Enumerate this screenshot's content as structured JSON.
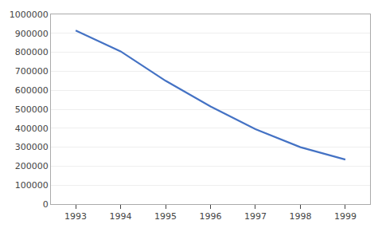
{
  "chart_data": {
    "type": "line",
    "x": [
      1993,
      1994,
      1995,
      1996,
      1997,
      1998,
      1999
    ],
    "values": [
      915000,
      805000,
      650000,
      515000,
      395000,
      300000,
      235000
    ],
    "color": "#4472C4",
    "xlim": [
      1992.45,
      1999.55
    ],
    "xticks": [
      1993,
      1994,
      1995,
      1996,
      1997,
      1998,
      1999
    ],
    "ylim": [
      0,
      1000000
    ],
    "yticks": [
      0,
      100000,
      200000,
      300000,
      400000,
      500000,
      600000,
      700000,
      800000,
      900000,
      1000000
    ],
    "grid": true
  }
}
